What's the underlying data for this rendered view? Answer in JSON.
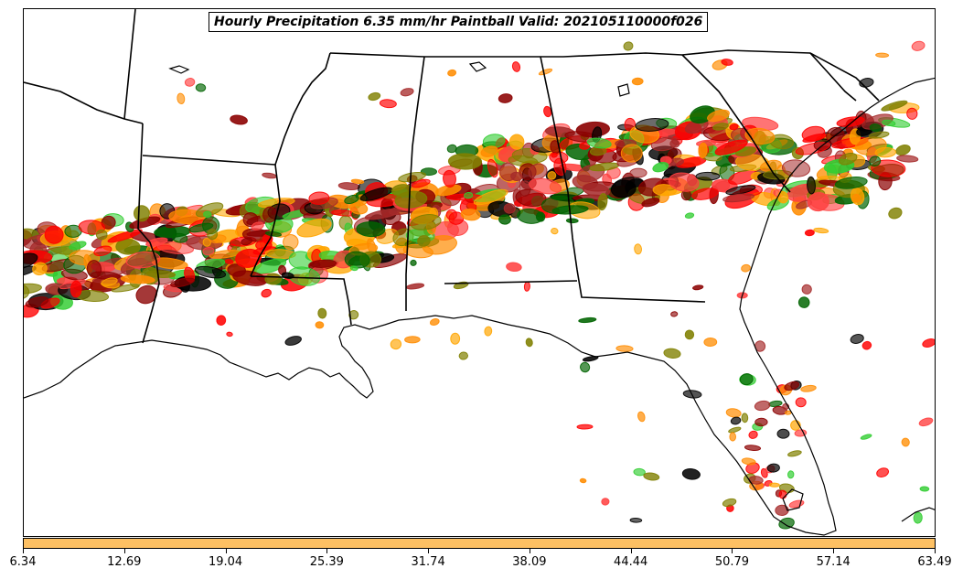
{
  "title": "Hourly Precipitation 6.35 mm/hr Paintball Valid: 202105110000f026",
  "colorbar": {
    "color": "#fdc063",
    "ticks": [
      "6.34",
      "12.69",
      "19.04",
      "25.39",
      "31.74",
      "38.09",
      "44.44",
      "50.79",
      "57.14",
      "63.49"
    ]
  },
  "member_colors": [
    "#8b0000",
    "#ff0000",
    "#ff8c00",
    "#ffa500",
    "#32cd32",
    "#006400",
    "#808000",
    "#a52a2a",
    "#ff4040",
    "#000000"
  ]
}
